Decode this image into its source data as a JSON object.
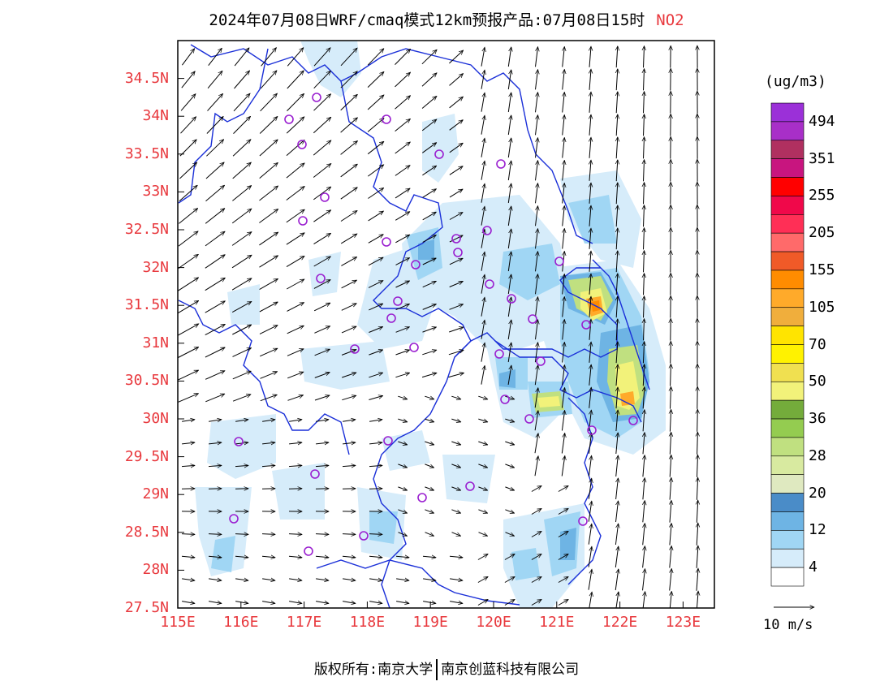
{
  "title": "2024年07月08日WRF/cmaq模式12km预报产品:07月08日15时",
  "pollutant": "NO2",
  "lat_labels": [
    "34.5N",
    "34N",
    "33.5N",
    "33N",
    "32.5N",
    "32N",
    "31.5N",
    "31N",
    "30.5N",
    "30N",
    "29.5N",
    "29N",
    "28.5N",
    "28N",
    "27.5N"
  ],
  "lon_labels": [
    "115E",
    "116E",
    "117E",
    "118E",
    "119E",
    "120E",
    "121E",
    "122E",
    "123E"
  ],
  "colorbar": {
    "units": "(ug/m3)",
    "labels": [
      "494",
      "351",
      "255",
      "205",
      "155",
      "105",
      "70",
      "50",
      "36",
      "28",
      "20",
      "12",
      "4"
    ],
    "colors": [
      "#9b30d8",
      "#a82fc8",
      "#b03060",
      "#c8157f",
      "#ff0000",
      "#f0084a",
      "#ff2f56",
      "#ff6a6a",
      "#f05a28",
      "#ff8c00",
      "#ffaa2a",
      "#f0ae3c",
      "#ffe400",
      "#fff200",
      "#f0e050",
      "#f2f27a",
      "#74ac3b",
      "#94cc50",
      "#c0e080",
      "#d8eaa0",
      "#dfe9c0",
      "#4a8cc8",
      "#6eb4e4",
      "#a0d6f4",
      "#d6ecfa",
      "#ffffff"
    ]
  },
  "vector_legend": "10 m/s",
  "footer": {
    "left": "版权所有:南京大学",
    "right": "南京创蓝科技有限公司"
  }
}
